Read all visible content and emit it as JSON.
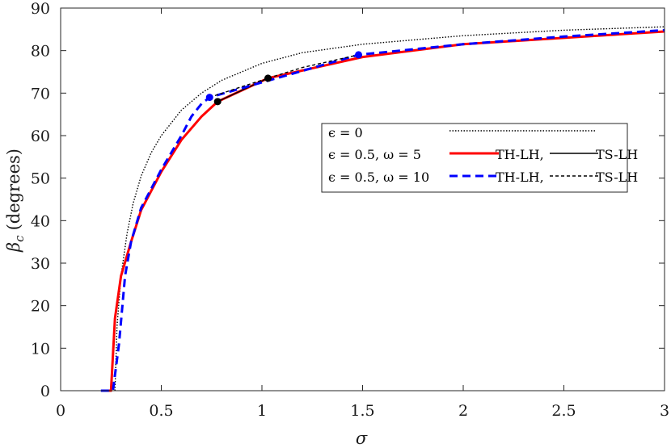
{
  "chart_data": {
    "type": "line",
    "xlabel": "σ",
    "ylabel_symbol": "β",
    "ylabel_subscript": "c",
    "ylabel_unit": "(degrees)",
    "xlim": [
      0,
      3
    ],
    "ylim": [
      0,
      90
    ],
    "x_ticks": [
      0,
      0.5,
      1,
      1.5,
      2,
      2.5,
      3
    ],
    "x_tick_labels": [
      "0",
      "0.5",
      "1",
      "1.5",
      "2",
      "2.5",
      "3"
    ],
    "y_ticks": [
      0,
      10,
      20,
      30,
      40,
      50,
      60,
      70,
      80,
      90
    ],
    "y_tick_labels": [
      "0",
      "10",
      "20",
      "30",
      "40",
      "50",
      "60",
      "70",
      "80",
      "90"
    ],
    "grid": false,
    "legend_position": "right-middle",
    "legend": [
      {
        "label": "ϵ = 0",
        "style": "dotted-black"
      },
      {
        "label": "ϵ = 0.5, ω = 5",
        "style": "red-solid",
        "th_label": "TH-LH,",
        "ts_label": "TS-LH"
      },
      {
        "label": "ϵ = 0.5, ω = 10",
        "style": "blue-dashed",
        "th_label": "TH-LH,",
        "ts_label": "TS-LH"
      }
    ],
    "series": [
      {
        "key": "eps0",
        "color": "#000000",
        "dash": "1.5,2",
        "width": 1.4,
        "x": [
          0.27,
          0.28,
          0.3,
          0.33,
          0.36,
          0.4,
          0.45,
          0.5,
          0.6,
          0.7,
          0.8,
          1.0,
          1.2,
          1.5,
          2.0,
          2.5,
          3.0
        ],
        "y": [
          0,
          15,
          27,
          37,
          44,
          50.5,
          56,
          60,
          66,
          70,
          73,
          77,
          79.5,
          81.5,
          83.5,
          84.8,
          85.6
        ]
      },
      {
        "key": "w5_th",
        "color": "#ff0000",
        "dash": "",
        "width": 3,
        "x": [
          0.22,
          0.25,
          0.27,
          0.3,
          0.35,
          0.4,
          0.5,
          0.6,
          0.7,
          0.78,
          1.03,
          1.5,
          2.0,
          2.5,
          3.0
        ],
        "y": [
          0,
          0,
          17,
          27,
          35,
          42.5,
          51.5,
          59,
          64.5,
          68,
          73.5,
          78.5,
          81.5,
          83,
          84.5
        ]
      },
      {
        "key": "w5_ts",
        "color": "#000000",
        "dash": "",
        "width": 1.4,
        "x": [
          0.78,
          1.03
        ],
        "y": [
          68,
          73.5
        ]
      },
      {
        "key": "w10_th",
        "color": "#0000ff",
        "dash": "10,6",
        "width": 3,
        "x": [
          0.2,
          0.26,
          0.29,
          0.32,
          0.35,
          0.4,
          0.45,
          0.5,
          0.6,
          0.65,
          0.7,
          0.74,
          1.48,
          2.0,
          2.5,
          3.0
        ],
        "y": [
          0,
          0,
          11,
          27,
          35,
          43,
          47.5,
          52,
          60,
          64.5,
          67.5,
          69,
          79,
          81.5,
          83.3,
          84.8
        ]
      },
      {
        "key": "w10_ts",
        "color": "#000000",
        "dash": "4,3",
        "width": 1.4,
        "x": [
          0.74,
          0.9,
          1.03,
          1.2,
          1.48
        ],
        "y": [
          69,
          71.5,
          73.5,
          76,
          79
        ]
      }
    ],
    "markers": [
      {
        "x": 0.78,
        "y": 68,
        "color": "#000000"
      },
      {
        "x": 1.03,
        "y": 73.5,
        "color": "#000000"
      },
      {
        "x": 0.74,
        "y": 69,
        "color": "#0000ff"
      },
      {
        "x": 1.48,
        "y": 79,
        "color": "#0000ff"
      }
    ]
  }
}
